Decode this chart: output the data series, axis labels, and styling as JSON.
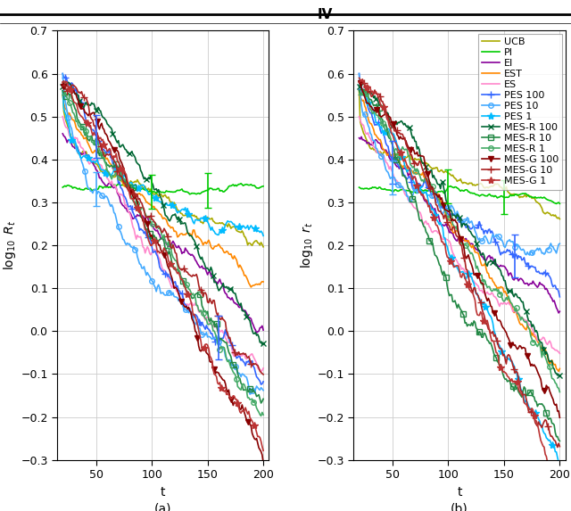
{
  "title": "IV",
  "subplot_a_ylabel": "$\\log_{10}$ $R_t$",
  "subplot_b_ylabel": "$\\log_{10}$ $r_t$",
  "xlabel": "t",
  "ylim": [
    -0.3,
    0.7
  ],
  "xlim": [
    15,
    205
  ],
  "yticks": [
    -0.3,
    -0.2,
    -0.1,
    0.0,
    0.1,
    0.2,
    0.3,
    0.4,
    0.5,
    0.6,
    0.7
  ],
  "xticks": [
    50,
    100,
    150,
    200
  ],
  "legend_names": [
    "UCB",
    "PI",
    "EI",
    "EST",
    "ES",
    "PES 100",
    "PES 10",
    "PES 1",
    "MES-R 100",
    "MES-R 10",
    "MES-R 1",
    "MES-G 100",
    "MES-G 10",
    "MES-G 1"
  ],
  "colors": {
    "UCB": "#aaaa00",
    "PI": "#00cc00",
    "EI": "#880099",
    "EST": "#ff8800",
    "ES": "#ff88cc",
    "PES 100": "#3366ff",
    "PES 10": "#44aaff",
    "PES 1": "#00bbff",
    "MES-R 100": "#006633",
    "MES-R 10": "#228844",
    "MES-R 1": "#44aa66",
    "MES-G 100": "#880000",
    "MES-G 10": "#aa2222",
    "MES-G 1": "#bb3333"
  },
  "markers": {
    "UCB": "none",
    "PI": "none",
    "EI": "none",
    "EST": "none",
    "ES": "none",
    "PES 100": "+",
    "PES 10": "o",
    "PES 1": "*",
    "MES-R 100": "x",
    "MES-R 10": "s",
    "MES-R 1": "o",
    "MES-G 100": "v",
    "MES-G 10": "+",
    "MES-G 1": "*"
  },
  "hollow_markers": [
    "o",
    "s"
  ],
  "grid_color": "#cccccc",
  "background_color": "#ffffff"
}
